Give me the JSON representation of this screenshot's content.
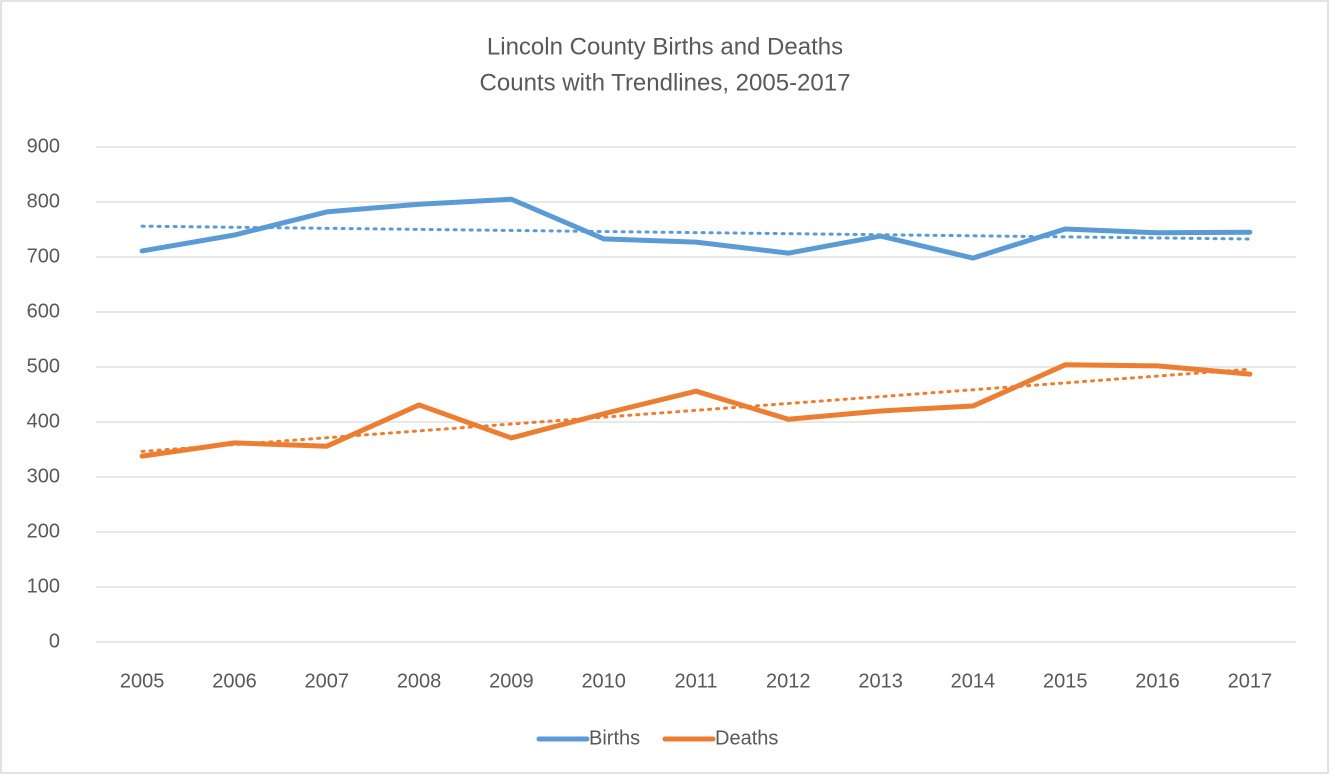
{
  "chart_data": {
    "type": "line",
    "title": "Lincoln County Births and Deaths",
    "subtitle": "Counts with Trendlines, 2005-2017",
    "categories": [
      "2005",
      "2006",
      "2007",
      "2008",
      "2009",
      "2010",
      "2011",
      "2012",
      "2013",
      "2014",
      "2015",
      "2016",
      "2017"
    ],
    "series": [
      {
        "name": "Births",
        "color": "#5b9bd5",
        "values": [
          711,
          740,
          782,
          796,
          805,
          733,
          727,
          707,
          738,
          698,
          751,
          744,
          745
        ]
      },
      {
        "name": "Deaths",
        "color": "#ed7d31",
        "values": [
          338,
          362,
          356,
          431,
          371,
          415,
          456,
          405,
          420,
          429,
          504,
          502,
          487
        ]
      }
    ],
    "trendline": true,
    "ylim": [
      0,
      900
    ],
    "yticks": [
      0,
      100,
      200,
      300,
      400,
      500,
      600,
      700,
      800,
      900
    ],
    "grid": true,
    "legend": "bottom"
  }
}
